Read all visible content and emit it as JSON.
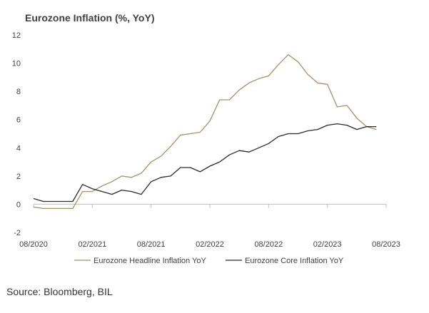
{
  "chart_data": {
    "type": "line",
    "title": "Eurozone Inflation (%, YoY)",
    "xlabel": "",
    "ylabel": "",
    "ylim": [
      -2,
      12
    ],
    "yticks": [
      -2,
      0,
      2,
      4,
      6,
      8,
      10,
      12
    ],
    "xticks": [
      "08/2020",
      "02/2021",
      "08/2021",
      "02/2022",
      "08/2022",
      "02/2023",
      "08/2023"
    ],
    "x": [
      "08/2020",
      "09/2020",
      "10/2020",
      "11/2020",
      "12/2020",
      "01/2021",
      "02/2021",
      "03/2021",
      "04/2021",
      "05/2021",
      "06/2021",
      "07/2021",
      "08/2021",
      "09/2021",
      "10/2021",
      "11/2021",
      "12/2021",
      "01/2022",
      "02/2022",
      "03/2022",
      "04/2022",
      "05/2022",
      "06/2022",
      "07/2022",
      "08/2022",
      "09/2022",
      "10/2022",
      "11/2022",
      "12/2022",
      "01/2023",
      "02/2023",
      "03/2023",
      "04/2023",
      "05/2023",
      "06/2023",
      "07/2023"
    ],
    "series": [
      {
        "name": "Eurozone Headline Inflation YoY",
        "color": "#a89068",
        "values": [
          -0.2,
          -0.3,
          -0.3,
          -0.3,
          -0.3,
          0.9,
          0.9,
          1.3,
          1.6,
          2.0,
          1.9,
          2.2,
          3.0,
          3.4,
          4.1,
          4.9,
          5.0,
          5.1,
          5.9,
          7.4,
          7.4,
          8.1,
          8.6,
          8.9,
          9.1,
          9.9,
          10.6,
          10.1,
          9.2,
          8.6,
          8.5,
          6.9,
          7.0,
          6.1,
          5.5,
          5.3
        ]
      },
      {
        "name": "Eurozone Core Inflation YoY",
        "color": "#2b2b2b",
        "values": [
          0.4,
          0.2,
          0.2,
          0.2,
          0.2,
          1.4,
          1.1,
          0.9,
          0.7,
          1.0,
          0.9,
          0.7,
          1.6,
          1.9,
          2.0,
          2.6,
          2.6,
          2.3,
          2.7,
          3.0,
          3.5,
          3.8,
          3.7,
          4.0,
          4.3,
          4.8,
          5.0,
          5.0,
          5.2,
          5.3,
          5.6,
          5.7,
          5.6,
          5.3,
          5.5,
          5.5
        ]
      }
    ],
    "legend": "bottom",
    "grid": false
  },
  "source": "Source: Bloomberg, BIL"
}
